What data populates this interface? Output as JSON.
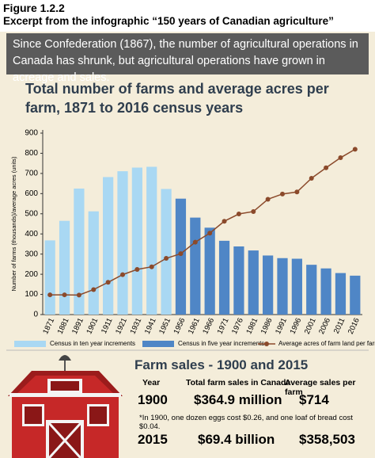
{
  "figure": "Figure 1.2.2",
  "caption": "Excerpt from the infographic “150 years of Canadian agriculture”",
  "intro": "Since Confederation (1867), the number of agricultural operations in Canada has shrunk, but agricultural operations have grown in acreage and sales.",
  "chart_data": {
    "type": "bar",
    "title": "Total number of farms and average acres per farm, 1871 to 2016 census years",
    "y_label": "Number of farms (thousands)/average acres (units)",
    "categories": [
      "1871",
      "1881",
      "1891",
      "1901",
      "1911",
      "1921",
      "1931",
      "1941",
      "1951",
      "1956",
      "1961",
      "1966",
      "1971",
      "1976",
      "1981",
      "1986",
      "1991",
      "1996",
      "2001",
      "2006",
      "2011",
      "2016"
    ],
    "series": [
      {
        "name": "Census in ten year increments",
        "type": "bar",
        "color": "#a9d8f3",
        "values": [
          368,
          465,
          625,
          512,
          682,
          711,
          729,
          733,
          623,
          null,
          null,
          null,
          null,
          null,
          null,
          null,
          null,
          null,
          null,
          null,
          null,
          null
        ]
      },
      {
        "name": "Census in five year increments",
        "type": "bar",
        "color": "#4f86c6",
        "values": [
          null,
          null,
          null,
          null,
          null,
          null,
          null,
          null,
          null,
          575,
          481,
          431,
          366,
          338,
          318,
          293,
          280,
          277,
          247,
          229,
          206,
          193
        ]
      },
      {
        "name": "Average acres of farm land per farm",
        "type": "line",
        "color": "#8b4a2b",
        "values": [
          98,
          98,
          97,
          124,
          160,
          198,
          224,
          237,
          279,
          302,
          359,
          404,
          463,
          499,
          511,
          572,
          598,
          608,
          676,
          728,
          778,
          820
        ]
      }
    ],
    "ylim": [
      0,
      900
    ],
    "yticks": [
      0,
      100,
      200,
      300,
      400,
      500,
      600,
      700,
      800,
      900
    ],
    "grid": false,
    "legend": "bottom"
  },
  "farm_sales": {
    "title": "Farm sales - 1900 and 2015",
    "header": [
      "Year",
      "Total farm sales in Canada",
      "Average sales per farm"
    ],
    "rows": [
      [
        "1900",
        "$364.9 million",
        "$714"
      ],
      [
        "2015",
        "$69.4 billion",
        "$358,503"
      ]
    ],
    "note": "*In 1900, one dozen eggs cost $0.26, and one loaf of bread cost $0.04."
  }
}
